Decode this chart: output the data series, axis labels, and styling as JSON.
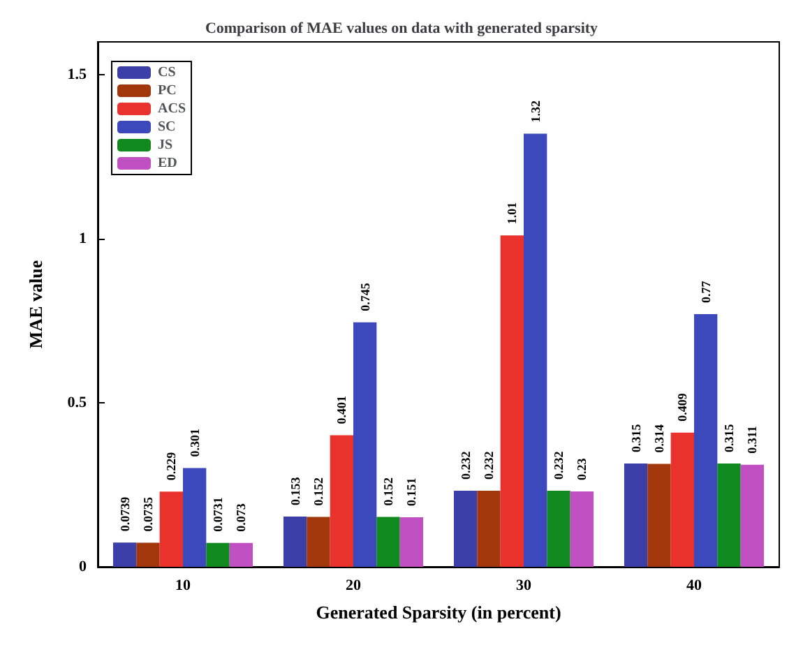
{
  "chart_data": {
    "type": "bar",
    "title": "Comparison of MAE values on data with generated sparsity",
    "xlabel": "Generated Sparsity (in percent)",
    "ylabel": "MAE value",
    "categories": [
      "10",
      "20",
      "30",
      "40"
    ],
    "series": [
      {
        "name": "CS",
        "color": "#3d3fa8",
        "values": [
          0.0739,
          0.153,
          0.232,
          0.315
        ]
      },
      {
        "name": "PC",
        "color": "#a3370c",
        "values": [
          0.0735,
          0.152,
          0.232,
          0.314
        ]
      },
      {
        "name": "ACS",
        "color": "#e8322b",
        "values": [
          0.229,
          0.401,
          1.01,
          0.409
        ]
      },
      {
        "name": "SC",
        "color": "#3b49bd",
        "values": [
          0.301,
          0.745,
          1.32,
          0.77
        ]
      },
      {
        "name": "JS",
        "color": "#10891e",
        "values": [
          0.0731,
          0.152,
          0.232,
          0.315
        ]
      },
      {
        "name": "ED",
        "color": "#c050c2",
        "values": [
          0.073,
          0.151,
          0.23,
          0.311
        ]
      }
    ],
    "ylim": [
      0,
      1.6
    ],
    "yticks": [
      0,
      0.5,
      1,
      1.5
    ],
    "grid": false,
    "legend": "top left",
    "data_labels": true
  }
}
